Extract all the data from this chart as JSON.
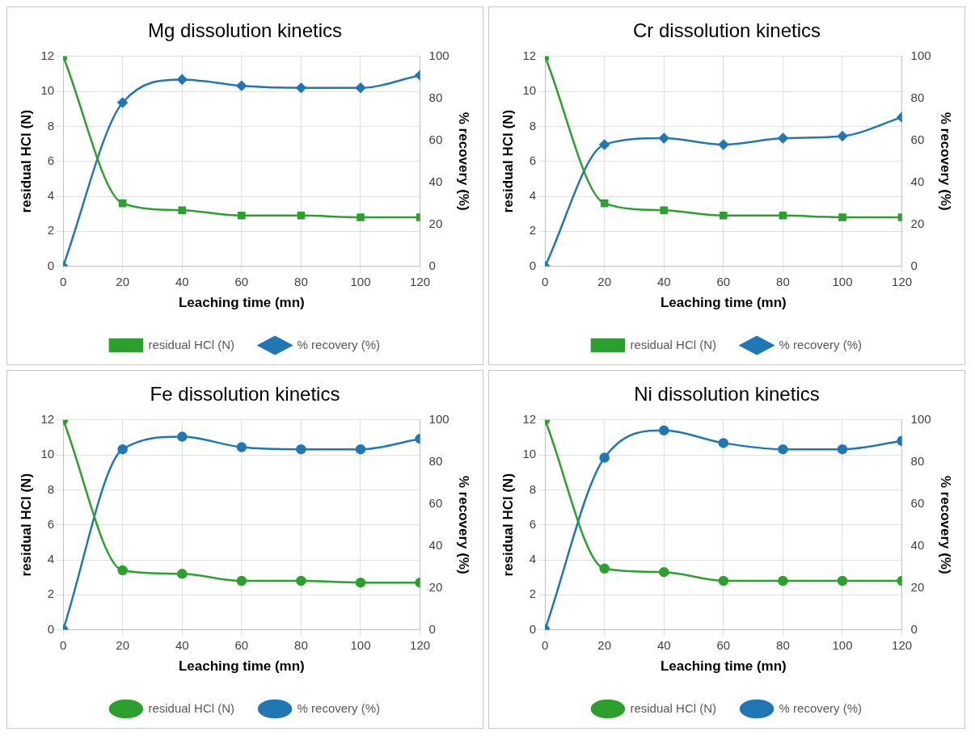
{
  "chart_data": [
    {
      "type": "line",
      "title": "Mg dissolution kinetics",
      "xlabel": "Leaching time (mn)",
      "ylabel": "residual HCl (N)",
      "y2label": "% recovery (%)",
      "x": [
        0,
        20,
        40,
        60,
        80,
        100,
        120
      ],
      "xlim": [
        0,
        120
      ],
      "xticks": [
        0,
        20,
        40,
        60,
        80,
        100,
        120
      ],
      "ylim": [
        0,
        12
      ],
      "yticks": [
        0,
        2,
        4,
        6,
        8,
        10,
        12
      ],
      "y2lim": [
        0,
        100
      ],
      "y2ticks": [
        0,
        20,
        40,
        60,
        80,
        100
      ],
      "grid": true,
      "legend": "bottom",
      "series": [
        {
          "name": "residual HCl (N)",
          "color": "#2ca02c",
          "marker": "square",
          "values": [
            12,
            3.6,
            3.2,
            2.9,
            2.9,
            2.8,
            2.8
          ]
        },
        {
          "name": "% recovery (%)",
          "color": "#1f77b4",
          "marker": "diamond",
          "axis": "y2",
          "values": [
            0,
            78,
            89,
            86,
            85,
            85,
            91
          ]
        }
      ]
    },
    {
      "type": "line",
      "title": "Cr dissolution kinetics",
      "xlabel": "Leaching time (mn)",
      "ylabel": "residual HCl (N)",
      "y2label": "% recovery (%)",
      "x": [
        0,
        20,
        40,
        60,
        80,
        100,
        120
      ],
      "xlim": [
        0,
        120
      ],
      "xticks": [
        0,
        20,
        40,
        60,
        80,
        100,
        120
      ],
      "ylim": [
        0,
        12
      ],
      "yticks": [
        0,
        2,
        4,
        6,
        8,
        10,
        12
      ],
      "y2lim": [
        0,
        100
      ],
      "y2ticks": [
        0,
        20,
        40,
        60,
        80,
        100
      ],
      "grid": true,
      "legend": "bottom",
      "series": [
        {
          "name": "residual HCl (N)",
          "color": "#2ca02c",
          "marker": "square",
          "values": [
            12,
            3.6,
            3.2,
            2.9,
            2.9,
            2.8,
            2.8
          ]
        },
        {
          "name": "% recovery (%)",
          "color": "#1f77b4",
          "marker": "diamond",
          "axis": "y2",
          "values": [
            0,
            58,
            61,
            58,
            61,
            62,
            71
          ]
        }
      ]
    },
    {
      "type": "line",
      "title": "Fe dissolution kinetics",
      "xlabel": "Leaching time (mn)",
      "ylabel": "residual HCl (N)",
      "y2label": "% recovery (%)",
      "x": [
        0,
        20,
        40,
        60,
        80,
        100,
        120
      ],
      "xlim": [
        0,
        120
      ],
      "xticks": [
        0,
        20,
        40,
        60,
        80,
        100,
        120
      ],
      "ylim": [
        0,
        12
      ],
      "yticks": [
        0,
        2,
        4,
        6,
        8,
        10,
        12
      ],
      "y2lim": [
        0,
        100
      ],
      "y2ticks": [
        0,
        20,
        40,
        60,
        80,
        100
      ],
      "grid": true,
      "legend": "bottom",
      "series": [
        {
          "name": "residual HCl (N)",
          "color": "#2ca02c",
          "marker": "circle",
          "values": [
            12,
            3.4,
            3.2,
            2.8,
            2.8,
            2.7,
            2.7
          ]
        },
        {
          "name": "% recovery (%)",
          "color": "#1f77b4",
          "marker": "circle",
          "axis": "y2",
          "values": [
            0,
            86,
            92,
            87,
            86,
            86,
            91
          ]
        }
      ]
    },
    {
      "type": "line",
      "title": "Ni dissolution kinetics",
      "xlabel": "Leaching time (mn)",
      "ylabel": "residual HCl (N)",
      "y2label": "% recovery (%)",
      "x": [
        0,
        20,
        40,
        60,
        80,
        100,
        120
      ],
      "xlim": [
        0,
        120
      ],
      "xticks": [
        0,
        20,
        40,
        60,
        80,
        100,
        120
      ],
      "ylim": [
        0,
        12
      ],
      "yticks": [
        0,
        2,
        4,
        6,
        8,
        10,
        12
      ],
      "y2lim": [
        0,
        100
      ],
      "y2ticks": [
        0,
        20,
        40,
        60,
        80,
        100
      ],
      "grid": true,
      "legend": "bottom",
      "series": [
        {
          "name": "residual HCl (N)",
          "color": "#2ca02c",
          "marker": "circle",
          "values": [
            12,
            3.5,
            3.3,
            2.8,
            2.8,
            2.8,
            2.8
          ]
        },
        {
          "name": "% recovery (%)",
          "color": "#1f77b4",
          "marker": "circle",
          "axis": "y2",
          "values": [
            0,
            82,
            95,
            89,
            86,
            86,
            90
          ]
        }
      ]
    }
  ]
}
